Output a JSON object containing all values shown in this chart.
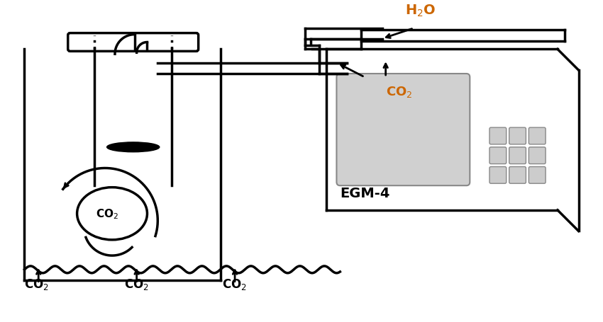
{
  "bg_color": "#ffffff",
  "line_color": "#000000",
  "text_color": "#000000",
  "orange_text": "#cc6600",
  "gray_fill": "#b0b0b0",
  "light_gray": "#d0d0d0",
  "lw": 2.5,
  "egm4_label": "EGM-4",
  "h2o_label": "H₂O",
  "co2_label": "CO₂"
}
